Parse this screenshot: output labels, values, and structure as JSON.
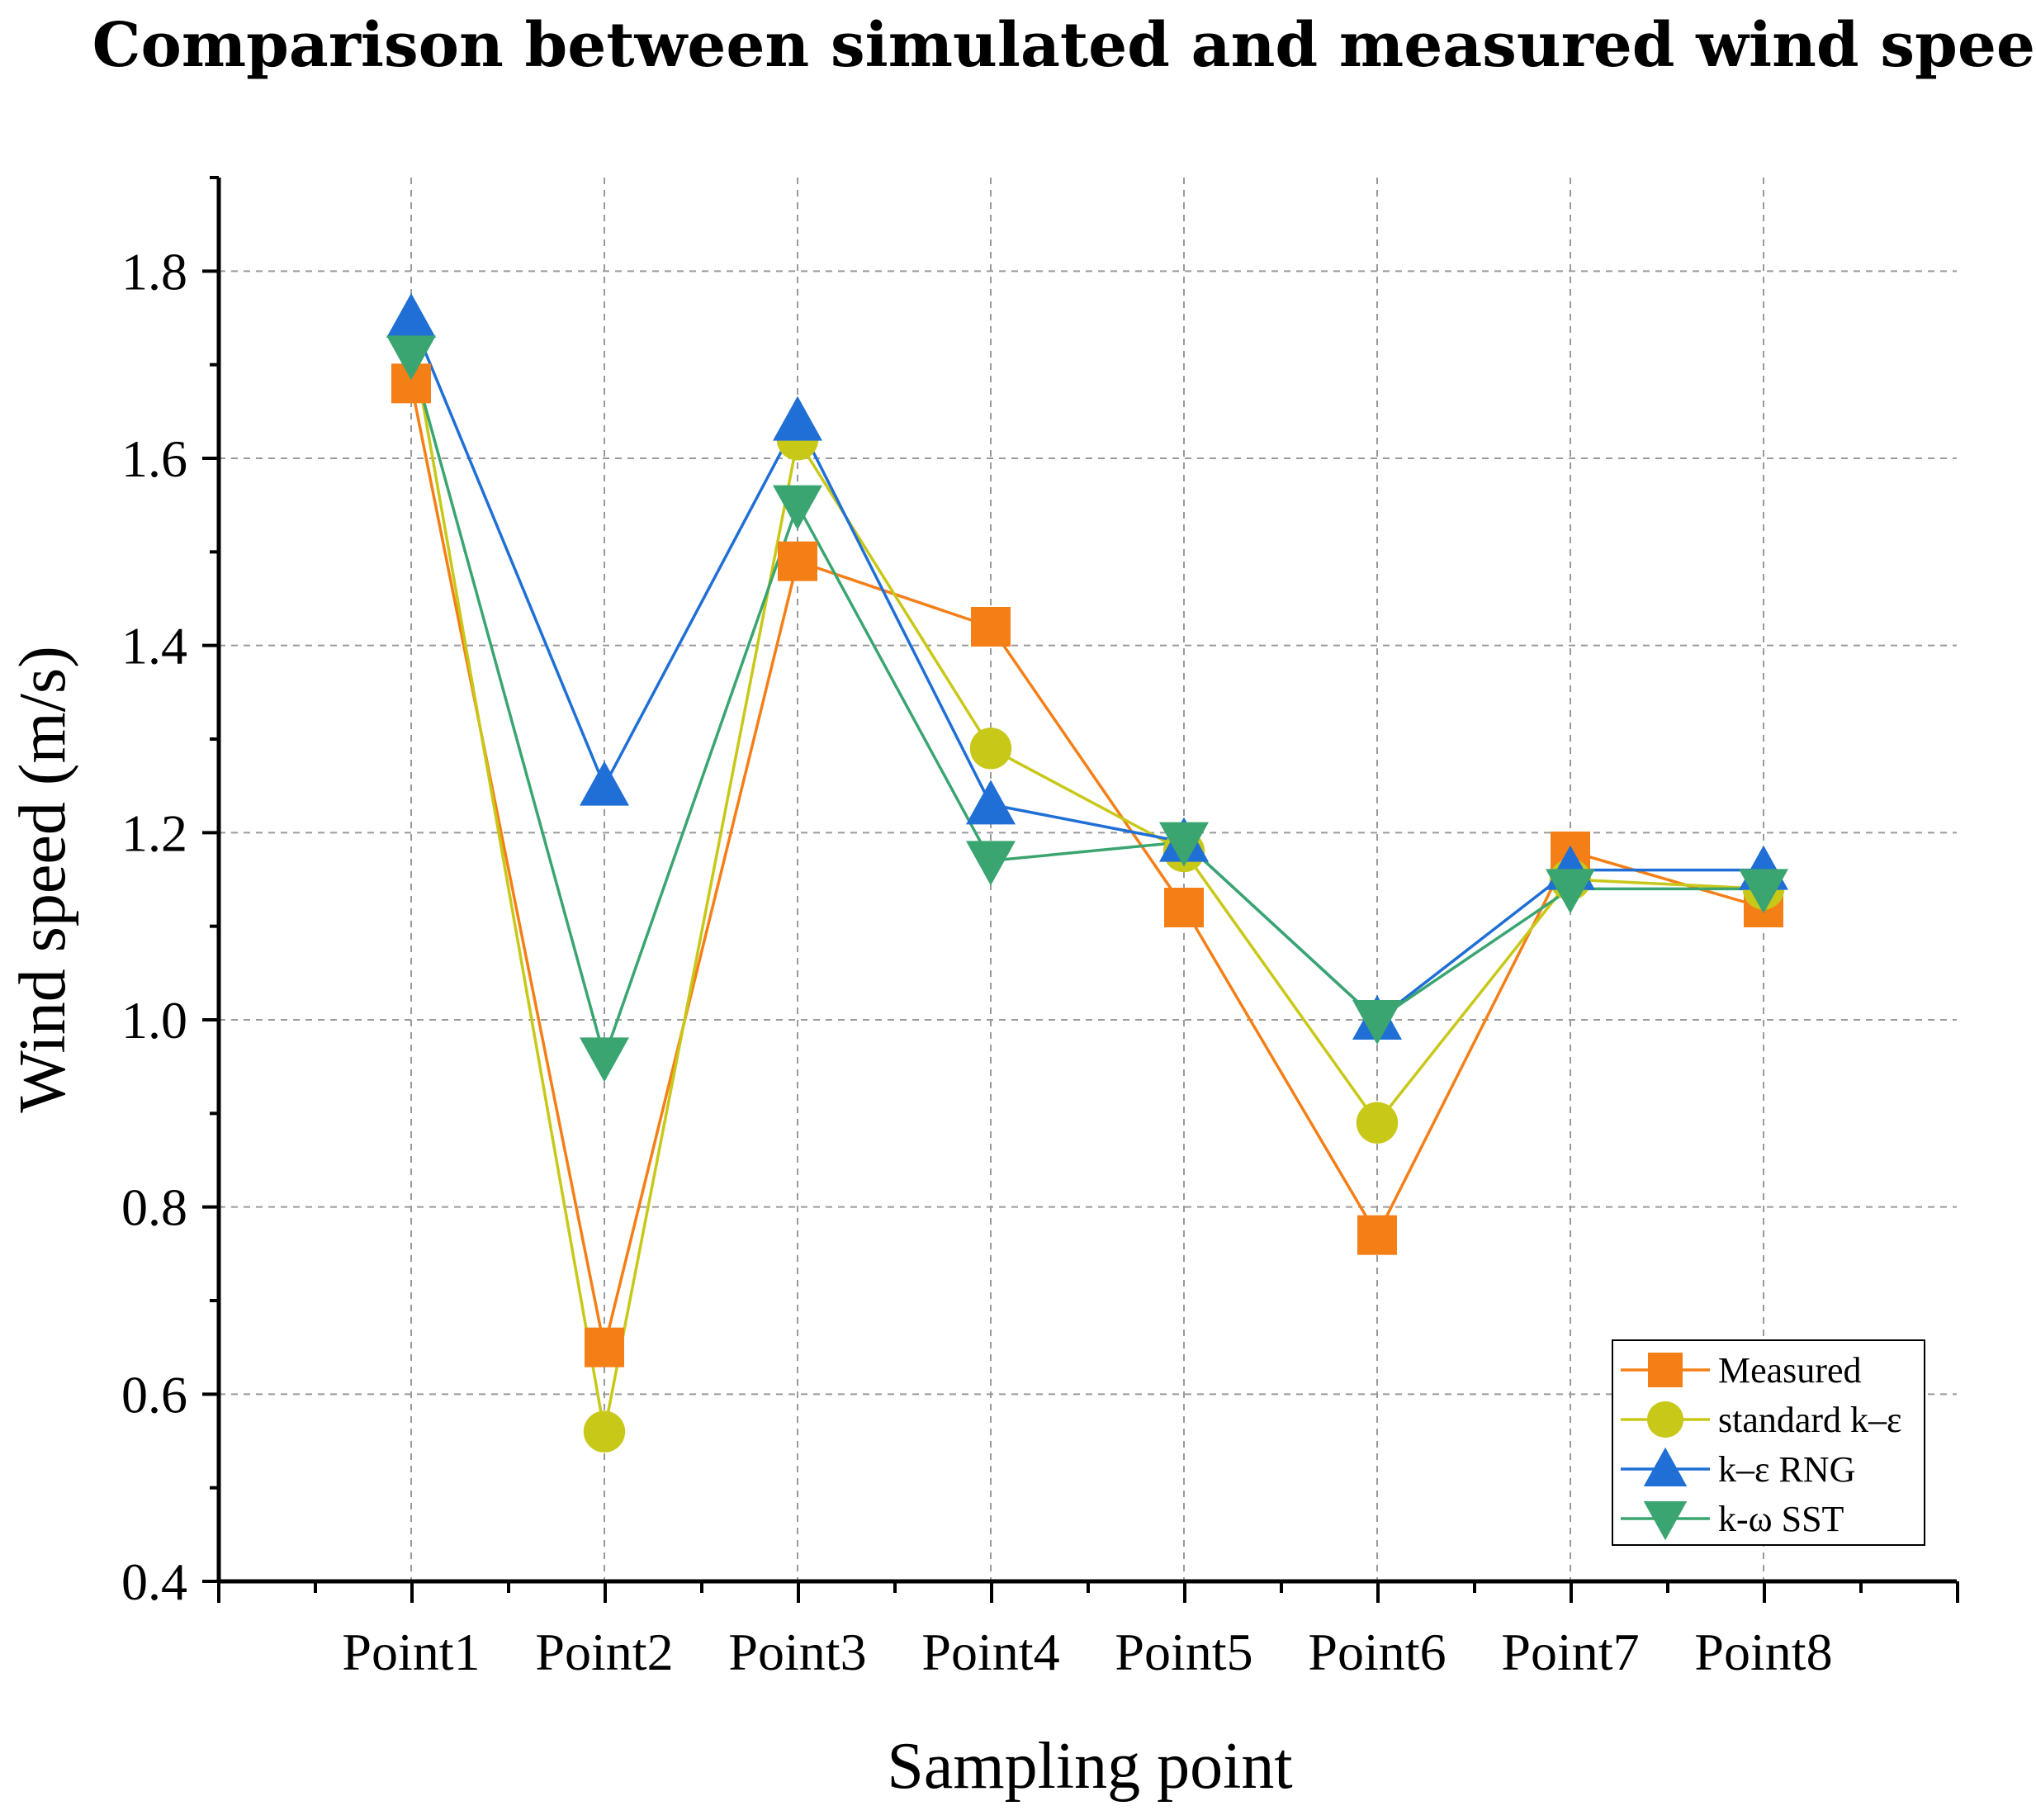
{
  "chart_data": {
    "type": "line",
    "title": "Comparison between simulated and measured wind speeds",
    "xlabel": "Sampling point",
    "ylabel": "Wind speed (m/s)",
    "categories": [
      "Point1",
      "Point2",
      "Point3",
      "Point4",
      "Point5",
      "Point6",
      "Point7",
      "Point8"
    ],
    "ylim": [
      0.4,
      1.9
    ],
    "yticks": [
      0.4,
      0.6,
      0.8,
      1.0,
      1.2,
      1.4,
      1.6,
      1.8
    ],
    "ytick_labels": [
      "0.4",
      "0.6",
      "0.8",
      "1.0",
      "1.2",
      "1.4",
      "1.6",
      "1.8"
    ],
    "grid": true,
    "legend_position": "bottom-right",
    "series": [
      {
        "name": "Measured",
        "marker": "square",
        "color": "#F57F17",
        "values": [
          1.68,
          0.65,
          1.49,
          1.42,
          1.12,
          0.77,
          1.18,
          1.12
        ]
      },
      {
        "name": "standard k–ε",
        "marker": "circle",
        "color": "#C8C819",
        "values": [
          1.73,
          0.56,
          1.62,
          1.29,
          1.18,
          0.89,
          1.15,
          1.14
        ]
      },
      {
        "name": "k–ε RNG",
        "marker": "triangle-up",
        "color": "#1F6FD6",
        "values": [
          1.75,
          1.25,
          1.64,
          1.23,
          1.19,
          1.0,
          1.16,
          1.16
        ]
      },
      {
        "name": "k-ω SST",
        "marker": "triangle-down",
        "color": "#3AA570",
        "values": [
          1.71,
          0.96,
          1.55,
          1.17,
          1.19,
          1.0,
          1.14,
          1.14
        ]
      }
    ]
  }
}
